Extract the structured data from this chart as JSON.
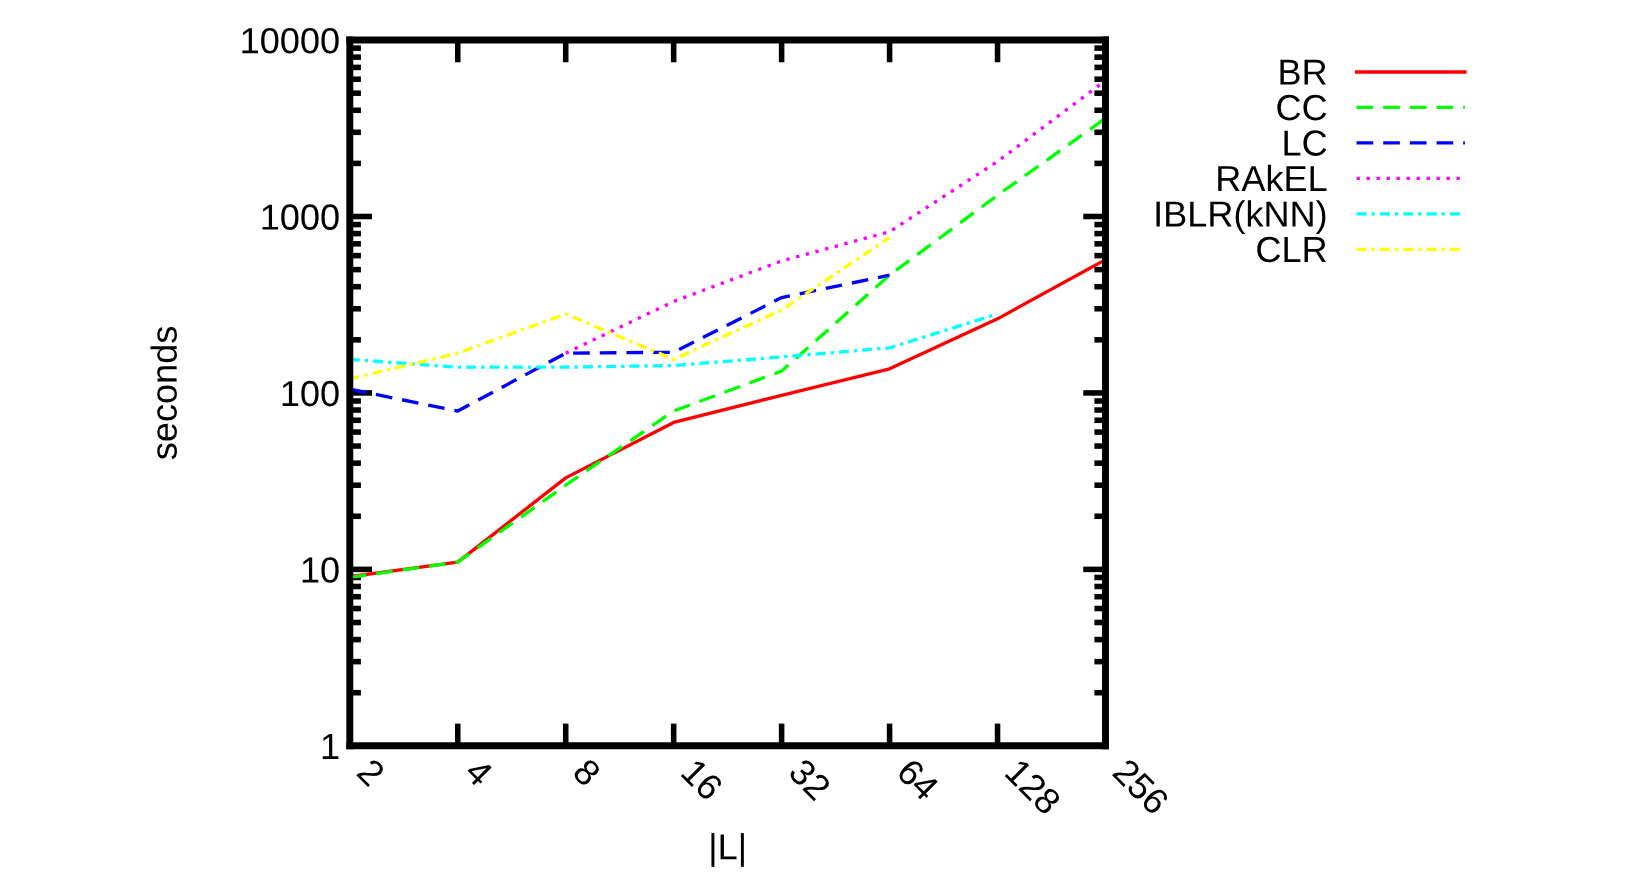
{
  "chart_data": {
    "type": "line",
    "xlabel": "|L|",
    "ylabel": "seconds",
    "log": "xy",
    "xlim": [
      2,
      256
    ],
    "xticks": [
      2,
      4,
      8,
      16,
      32,
      64,
      128,
      256
    ],
    "ylim": [
      1,
      10000
    ],
    "yticks": [
      1,
      10,
      100,
      1000,
      10000
    ],
    "grid": false,
    "legend": "top right",
    "x": [
      2,
      4,
      8,
      16,
      32,
      64,
      128,
      256
    ],
    "series": [
      {
        "name": "BR",
        "color": "#ff0000",
        "line_style": "solid",
        "values": [
          9.1,
          11,
          33,
          68,
          97,
          137,
          263,
          570
        ]
      },
      {
        "name": "CC",
        "color": "#00ff00",
        "line_style": "dashed",
        "values": [
          9,
          11,
          30,
          79,
          133,
          465,
          1320,
          3600
        ]
      },
      {
        "name": "LC",
        "color": "#0000ff",
        "line_style": "dashed",
        "values": [
          105,
          79,
          168,
          170,
          347,
          465,
          null,
          null
        ]
      },
      {
        "name": "RAkEL",
        "color": "#ff00ff",
        "line_style": "dotted",
        "values": [
          null,
          null,
          168,
          330,
          560,
          820,
          2050,
          5900
        ]
      },
      {
        "name": "IBLR(kNN)",
        "color": "#00ffff",
        "line_style": "dashdot",
        "values": [
          155,
          140,
          140,
          143,
          160,
          180,
          280,
          null
        ]
      },
      {
        "name": "CLR",
        "color": "#ffff00",
        "line_style": "dashdot",
        "values": [
          120,
          168,
          280,
          155,
          295,
          760,
          null,
          null
        ]
      }
    ]
  }
}
